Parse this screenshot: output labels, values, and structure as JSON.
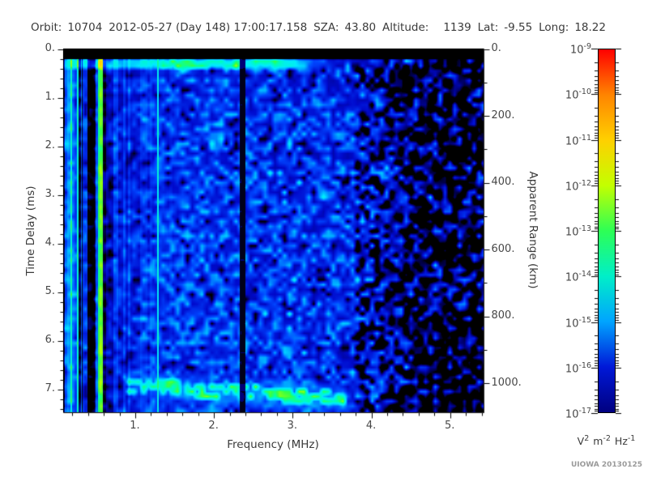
{
  "header": {
    "orbit_label": "Orbit:",
    "orbit_value": "10704",
    "datetime": "2012-05-27 (Day 148) 17:00:17.158",
    "sza_label": "SZA:",
    "sza_value": "43.80",
    "altitude_label": "Altitude:",
    "altitude_value": "1139",
    "lat_label": "Lat:",
    "lat_value": "-9.55",
    "long_label": "Long:",
    "long_value": "18.22"
  },
  "chart_data": {
    "type": "heatmap",
    "description": "Radar sounder ionogram: received spectral density vs frequency and time delay",
    "xlabel": "Frequency (MHz)",
    "ylabel_left": "Time Delay (ms)",
    "ylabel_right": "Apparent Range (km)",
    "x_axis": {
      "unit": "MHz",
      "min": 0.09,
      "max": 5.43,
      "major_ticks": [
        1,
        2,
        3,
        4,
        5
      ],
      "major_tick_labels": [
        "1.",
        "2.",
        "3.",
        "4.",
        "5."
      ],
      "minor_tick_step": 0.2
    },
    "y_axis_left": {
      "unit": "ms",
      "min": 0,
      "max": 7.48,
      "major_ticks": [
        0,
        1,
        2,
        3,
        4,
        5,
        6,
        7
      ],
      "major_tick_labels": [
        "0.",
        "1.",
        "2.",
        "3.",
        "4.",
        "5.",
        "6.",
        "7."
      ],
      "minor_tick_step": 0.2
    },
    "y_axis_right": {
      "unit": "km",
      "min": 0,
      "max": 1088,
      "major_ticks": [
        0,
        200,
        400,
        600,
        800,
        1000
      ],
      "major_tick_labels": [
        "0.",
        "200.",
        "400.",
        "600.",
        "800.",
        "1000."
      ],
      "minor_tick_step": 100
    },
    "colorbar": {
      "scale": "log",
      "max": "1e-9",
      "min": "1e-17",
      "tick_exponents": [
        -9,
        -10,
        -11,
        -12,
        -13,
        -14,
        -15,
        -16,
        -17
      ],
      "unit_parts": [
        {
          "base": "V",
          "exp": "2"
        },
        {
          "base": "m",
          "exp": "-2"
        },
        {
          "base": "Hz",
          "exp": "-1"
        }
      ],
      "gradient_stops": [
        "#ff0000",
        "#ff8400",
        "#ffd000",
        "#c3ff00",
        "#2dff55",
        "#00efc8",
        "#00a4ff",
        "#0018d8",
        "#000080"
      ]
    },
    "features": {
      "noise_floor": "~1e-16 to 1e-15 (blue/cyan speckle)",
      "blackout_band_top_ms": [
        0,
        0.23
      ],
      "receiver_bright_band_ms": [
        0.24,
        0.42
      ],
      "local_plasma_harmonic_band_mhz": [
        0.09,
        0.62
      ],
      "persistent_plasma_line_mhz": 1.29,
      "dark_gap_band_mhz": [
        2.33,
        2.4
      ],
      "dark_quiet_region_mhz_above": 3.8,
      "surface_echo": {
        "time_delay_ms_at_1mhz": 6.95,
        "time_delay_ms_at_3_5mhz": 7.2,
        "freq_span_mhz": [
          0.92,
          3.65
        ],
        "peak_level": "~1e-13 (green)"
      }
    },
    "render": {
      "seed_field": 1337,
      "seed_columns": 77
    }
  },
  "credit": "UIOWA 20130125"
}
